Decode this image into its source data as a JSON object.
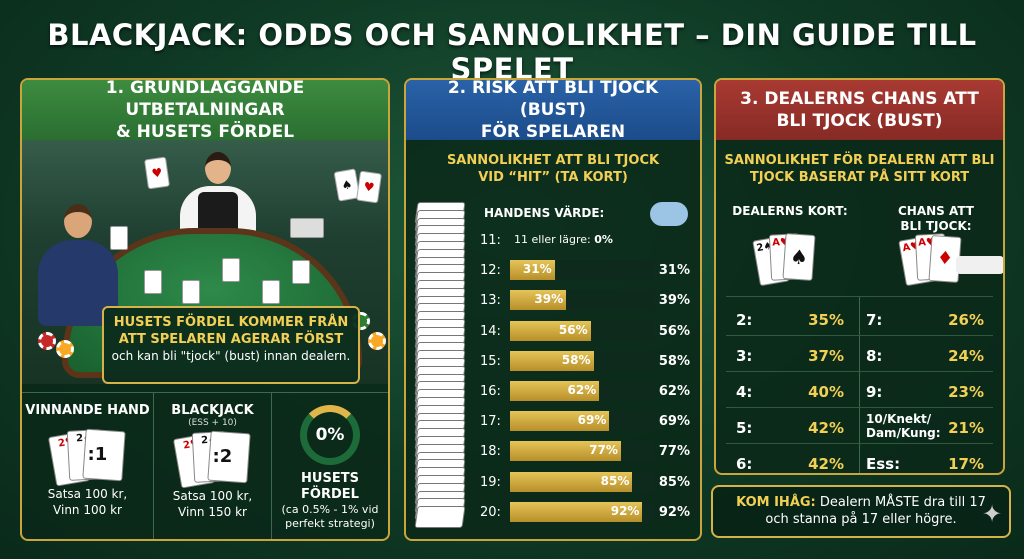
{
  "title": "BLACKJACK: ODDS OCH SANNOLIKHET – DIN GUIDE TILL SPELET",
  "panel1": {
    "heading_line1": "1. GRUNDLÄGGANDE UTBETALNINGAR",
    "heading_line2": "& HUSETS FÖRDEL",
    "house_box": {
      "title_line1": "HUSETS FÖRDEL KOMMER FRÅN",
      "title_line2": "ATT SPELAREN AGERAR FÖRST",
      "text": "och kan bli \"tjock\" (bust) innan dealern."
    },
    "winning_hand": {
      "title": "VINNANDE HAND",
      "ratio": ":1",
      "line1": "Satsa 100 kr,",
      "line2": "Vinn 100 kr"
    },
    "blackjack": {
      "title": "BLACKJACK",
      "sub": "(ESS + 10)",
      "ratio": ":2",
      "line1": "Satsa 100 kr,",
      "line2": "Vinn 150 kr"
    },
    "house_edge": {
      "ring_label": "0%",
      "title": "HUSETS FÖRDEL",
      "line1": "(ca 0.5% - 1% vid",
      "line2": "perfekt strategi)"
    }
  },
  "panel2": {
    "heading_line1": "2. RISK ATT BLI TJOCK (BUST)",
    "heading_line2": "FÖR SPELAREN",
    "sub_line1": "SANNOLIKHET ATT BLI TJOCK",
    "sub_line2": "VID “HIT” (TA KORT)",
    "col_head": "HANDENS VÄRDE:"
  },
  "panel3": {
    "heading_line1": "3. DEALERNS CHANS ATT",
    "heading_line2": "BLI TJOCK (BUST)",
    "sub_line1": "SANNOLIKHET FÖR DEALERN ATT BLI",
    "sub_line2": "TJOCK BASERAT PÅ SITT KORT",
    "col_head_left": "DEALERNS KORT:",
    "col_head_right_1": "CHANS ATT",
    "col_head_right_2": "BLI TJOCK:",
    "rows_left": [
      {
        "k": "2:",
        "v": "35%"
      },
      {
        "k": "3:",
        "v": "37%"
      },
      {
        "k": "4:",
        "v": "40%"
      },
      {
        "k": "5:",
        "v": "42%"
      },
      {
        "k": "6:",
        "v": "42%"
      }
    ],
    "rows_right": [
      {
        "k": "7:",
        "v": "26%"
      },
      {
        "k": "8:",
        "v": "24%"
      },
      {
        "k": "9:",
        "v": "23%"
      },
      {
        "k": "10/Knekt/",
        "k2": "Dam/Kung:",
        "v": "21%"
      },
      {
        "k": "Ess:",
        "v": "17%"
      }
    ]
  },
  "remember": {
    "label": "KOM IHÅG:",
    "text1": " Dealern MÅSTE dra till 17",
    "text2": "och stanna på 17 eller högre."
  },
  "chart_data": {
    "type": "bar",
    "categories": [
      "11:",
      "12:",
      "13:",
      "14:",
      "15:",
      "16:",
      "17:",
      "18:",
      "19:",
      "20:"
    ],
    "values": [
      0,
      31,
      39,
      56,
      58,
      62,
      69,
      77,
      85,
      92
    ],
    "value_labels": [
      "0%",
      "31%",
      "39%",
      "56%",
      "58%",
      "62%",
      "69%",
      "77%",
      "85%",
      "92%"
    ],
    "first_row_note": "11 eller lägre: ",
    "ylim": [
      0,
      100
    ]
  }
}
